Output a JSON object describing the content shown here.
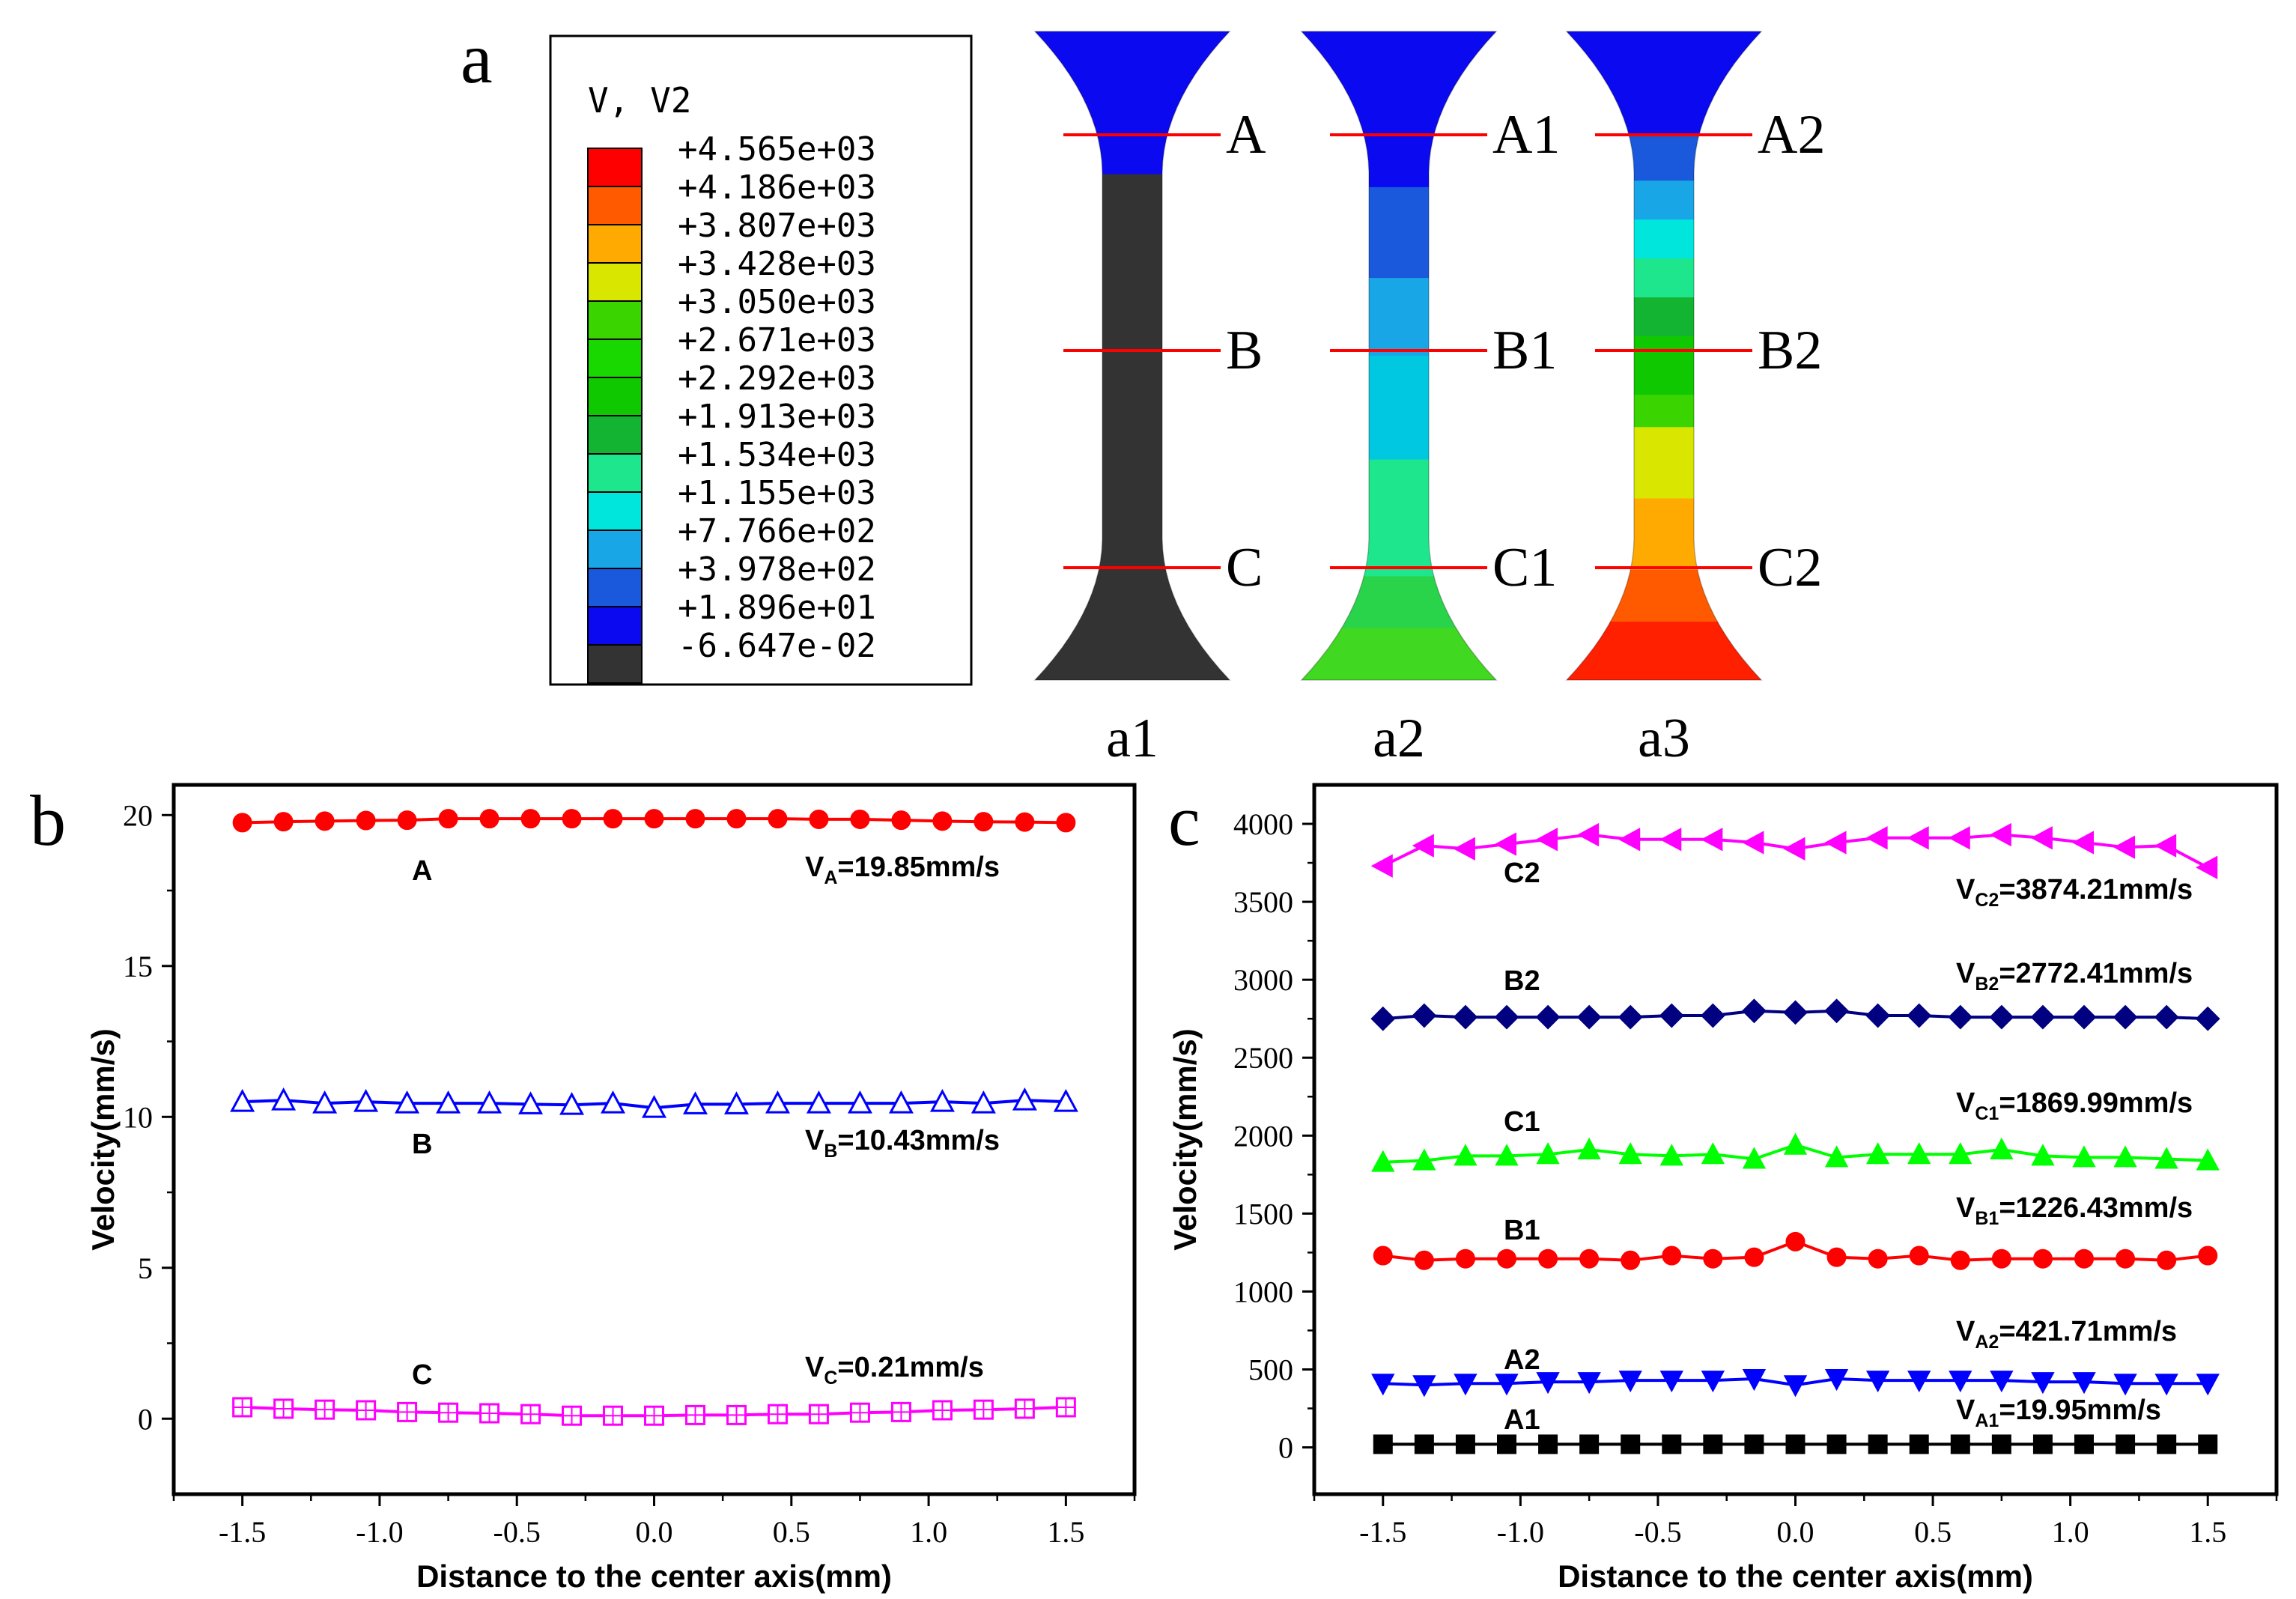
{
  "panels": {
    "a": {
      "label": "a"
    },
    "b": {
      "label": "b"
    },
    "c": {
      "label": "c"
    }
  },
  "contour_legend": {
    "title": "V, V2",
    "levels": [
      "+4.565e+03",
      "+4.186e+03",
      "+3.807e+03",
      "+3.428e+03",
      "+3.050e+03",
      "+2.671e+03",
      "+2.292e+03",
      "+1.913e+03",
      "+1.534e+03",
      "+1.155e+03",
      "+7.766e+02",
      "+3.978e+02",
      "+1.896e+01",
      "-6.647e-02"
    ],
    "colors": [
      "#ff0000",
      "#ff5a00",
      "#ffaa00",
      "#d8e600",
      "#3ad400",
      "#19d800",
      "#10c800",
      "#12b432",
      "#1ee68c",
      "#00e5dc",
      "#18a6e6",
      "#1a58dc",
      "#0b09ef",
      "#333333"
    ]
  },
  "specimens": [
    {
      "id": "a1",
      "caption": "a1",
      "line_labels": [
        "A",
        "B",
        "C"
      ],
      "bands": [
        {
          "color": "#0b09ef",
          "from": 0.0,
          "to": 0.22
        },
        {
          "color": "#333333",
          "from": 0.22,
          "to": 1.0
        }
      ]
    },
    {
      "id": "a2",
      "caption": "a2",
      "line_labels": [
        "A1",
        "B1",
        "C1"
      ],
      "bands": [
        {
          "color": "#0b09ef",
          "from": 0.0,
          "to": 0.24
        },
        {
          "color": "#1a58dc",
          "from": 0.24,
          "to": 0.38
        },
        {
          "color": "#18a6e6",
          "from": 0.38,
          "to": 0.5
        },
        {
          "color": "#00c8e0",
          "from": 0.5,
          "to": 0.66
        },
        {
          "color": "#1ee68c",
          "from": 0.66,
          "to": 0.84
        },
        {
          "color": "#2ad44a",
          "from": 0.84,
          "to": 0.92
        },
        {
          "color": "#40d820",
          "from": 0.92,
          "to": 1.0
        }
      ]
    },
    {
      "id": "a3",
      "caption": "a3",
      "line_labels": [
        "A2",
        "B2",
        "C2"
      ],
      "bands": [
        {
          "color": "#0b09ef",
          "from": 0.0,
          "to": 0.16
        },
        {
          "color": "#1a58dc",
          "from": 0.16,
          "to": 0.23
        },
        {
          "color": "#18a6e6",
          "from": 0.23,
          "to": 0.29
        },
        {
          "color": "#00e5dc",
          "from": 0.29,
          "to": 0.35
        },
        {
          "color": "#1ee68c",
          "from": 0.35,
          "to": 0.41
        },
        {
          "color": "#12b432",
          "from": 0.41,
          "to": 0.47
        },
        {
          "color": "#10c800",
          "from": 0.47,
          "to": 0.56
        },
        {
          "color": "#3ad400",
          "from": 0.56,
          "to": 0.61
        },
        {
          "color": "#d8e600",
          "from": 0.61,
          "to": 0.72
        },
        {
          "color": "#ffaa00",
          "from": 0.72,
          "to": 0.83
        },
        {
          "color": "#ff5a00",
          "from": 0.83,
          "to": 0.91
        },
        {
          "color": "#ff2000",
          "from": 0.91,
          "to": 1.0
        }
      ]
    }
  ],
  "chart_data": [
    {
      "type": "line",
      "panel": "b",
      "xlabel": "Distance to the center axis(mm)",
      "ylabel": "Velocity(mm/s)",
      "xlim": [
        -1.75,
        1.75
      ],
      "ylim": [
        -2.5,
        21
      ],
      "xticks": [
        -1.5,
        -1.0,
        -0.5,
        0.0,
        0.5,
        1.0,
        1.5
      ],
      "xtick_labels": [
        "-1.5",
        "-1.0",
        "-0.5",
        "0.0",
        "0.5",
        "1.0",
        "1.5"
      ],
      "yticks": [
        0,
        5,
        10,
        15,
        20
      ],
      "ytick_labels": [
        "0",
        "5",
        "10",
        "15",
        "20"
      ],
      "x": [
        -1.5,
        -1.35,
        -1.2,
        -1.05,
        -0.9,
        -0.75,
        -0.6,
        -0.45,
        -0.3,
        -0.15,
        0.0,
        0.15,
        0.3,
        0.45,
        0.6,
        0.75,
        0.9,
        1.05,
        1.2,
        1.35,
        1.5
      ],
      "series": [
        {
          "name": "A",
          "color": "#ff0000",
          "marker": "circle",
          "fill": true,
          "values": [
            19.75,
            19.78,
            19.8,
            19.82,
            19.83,
            19.88,
            19.88,
            19.88,
            19.88,
            19.88,
            19.88,
            19.88,
            19.88,
            19.88,
            19.86,
            19.86,
            19.83,
            19.8,
            19.78,
            19.77,
            19.75
          ],
          "label": "A",
          "annotation_main": "V",
          "annotation_sub": "A",
          "annotation_rest": "=19.85mm/s"
        },
        {
          "name": "B",
          "color": "#0000ff",
          "marker": "triangle-up",
          "fill": false,
          "values": [
            10.5,
            10.55,
            10.45,
            10.5,
            10.45,
            10.45,
            10.45,
            10.42,
            10.4,
            10.45,
            10.3,
            10.42,
            10.42,
            10.45,
            10.45,
            10.45,
            10.45,
            10.5,
            10.45,
            10.55,
            10.5
          ],
          "label": "B",
          "annotation_main": "V",
          "annotation_sub": "B",
          "annotation_rest": "=10.43mm/s"
        },
        {
          "name": "C",
          "color": "#ff00ff",
          "marker": "square-plus",
          "fill": false,
          "values": [
            0.38,
            0.33,
            0.3,
            0.28,
            0.22,
            0.2,
            0.18,
            0.15,
            0.1,
            0.1,
            0.1,
            0.12,
            0.12,
            0.15,
            0.15,
            0.2,
            0.22,
            0.28,
            0.3,
            0.33,
            0.38
          ],
          "label": "C",
          "annotation_main": "V",
          "annotation_sub": "C",
          "annotation_rest": "=0.21mm/s"
        }
      ]
    },
    {
      "type": "line",
      "panel": "c",
      "xlabel": "Distance to the center axis(mm)",
      "ylabel": "Velocity(mm/s)",
      "xlim": [
        -1.75,
        1.75
      ],
      "ylim": [
        -300,
        4250
      ],
      "xticks": [
        -1.5,
        -1.0,
        -0.5,
        0.0,
        0.5,
        1.0,
        1.5
      ],
      "xtick_labels": [
        "-1.5",
        "-1.0",
        "-0.5",
        "0.0",
        "0.5",
        "1.0",
        "1.5"
      ],
      "yticks": [
        0,
        500,
        1000,
        1500,
        2000,
        2500,
        3000,
        3500,
        4000
      ],
      "ytick_labels": [
        "0",
        "500",
        "1000",
        "1500",
        "2000",
        "2500",
        "3000",
        "3500",
        "4000"
      ],
      "x": [
        -1.5,
        -1.35,
        -1.2,
        -1.05,
        -0.9,
        -0.75,
        -0.6,
        -0.45,
        -0.3,
        -0.15,
        0.0,
        0.15,
        0.3,
        0.45,
        0.6,
        0.75,
        0.9,
        1.05,
        1.2,
        1.35,
        1.5
      ],
      "series": [
        {
          "name": "C2",
          "color": "#ff00ff",
          "marker": "triangle-left",
          "fill": true,
          "values": [
            3730,
            3860,
            3840,
            3870,
            3900,
            3930,
            3900,
            3900,
            3900,
            3880,
            3840,
            3880,
            3910,
            3910,
            3910,
            3930,
            3910,
            3880,
            3850,
            3860,
            3720
          ],
          "label": "C2",
          "annotation_main": "V",
          "annotation_sub": "C2",
          "annotation_rest": "=3874.21mm/s"
        },
        {
          "name": "B2",
          "color": "#000080",
          "marker": "diamond",
          "fill": true,
          "values": [
            2750,
            2770,
            2760,
            2760,
            2760,
            2760,
            2760,
            2770,
            2770,
            2800,
            2790,
            2800,
            2770,
            2770,
            2760,
            2760,
            2760,
            2760,
            2760,
            2760,
            2750
          ],
          "label": "B2",
          "annotation_main": "V",
          "annotation_sub": "B2",
          "annotation_rest": "=2772.41mm/s"
        },
        {
          "name": "C1",
          "color": "#00ff00",
          "marker": "triangle-up",
          "fill": true,
          "values": [
            1830,
            1840,
            1870,
            1870,
            1880,
            1910,
            1880,
            1870,
            1880,
            1850,
            1940,
            1860,
            1880,
            1880,
            1880,
            1910,
            1870,
            1860,
            1860,
            1850,
            1840
          ],
          "label": "C1",
          "annotation_main": "V",
          "annotation_sub": "C1",
          "annotation_rest": "=1869.99mm/s"
        },
        {
          "name": "B1",
          "color": "#ff0000",
          "marker": "circle",
          "fill": true,
          "values": [
            1230,
            1200,
            1210,
            1210,
            1210,
            1210,
            1200,
            1230,
            1210,
            1220,
            1320,
            1220,
            1210,
            1230,
            1200,
            1210,
            1210,
            1210,
            1210,
            1200,
            1230
          ],
          "label": "B1",
          "annotation_main": "V",
          "annotation_sub": "B1",
          "annotation_rest": "=1226.43mm/s"
        },
        {
          "name": "A2",
          "color": "#0000ff",
          "marker": "triangle-down",
          "fill": true,
          "values": [
            410,
            400,
            410,
            410,
            420,
            420,
            430,
            430,
            430,
            440,
            400,
            440,
            430,
            430,
            430,
            430,
            420,
            420,
            410,
            410,
            410
          ],
          "label": "A2",
          "annotation_main": "V",
          "annotation_sub": "A2",
          "annotation_rest": "=421.71mm/s"
        },
        {
          "name": "A1",
          "color": "#000000",
          "marker": "square",
          "fill": true,
          "values": [
            19.95,
            19.95,
            19.95,
            19.95,
            19.95,
            19.95,
            19.95,
            19.95,
            19.95,
            19.95,
            19.95,
            19.95,
            19.95,
            19.95,
            19.95,
            19.95,
            19.95,
            19.95,
            19.95,
            19.95,
            19.95
          ],
          "label": "A1",
          "annotation_main": "V",
          "annotation_sub": "A1",
          "annotation_rest": "=19.95mm/s"
        }
      ]
    }
  ]
}
